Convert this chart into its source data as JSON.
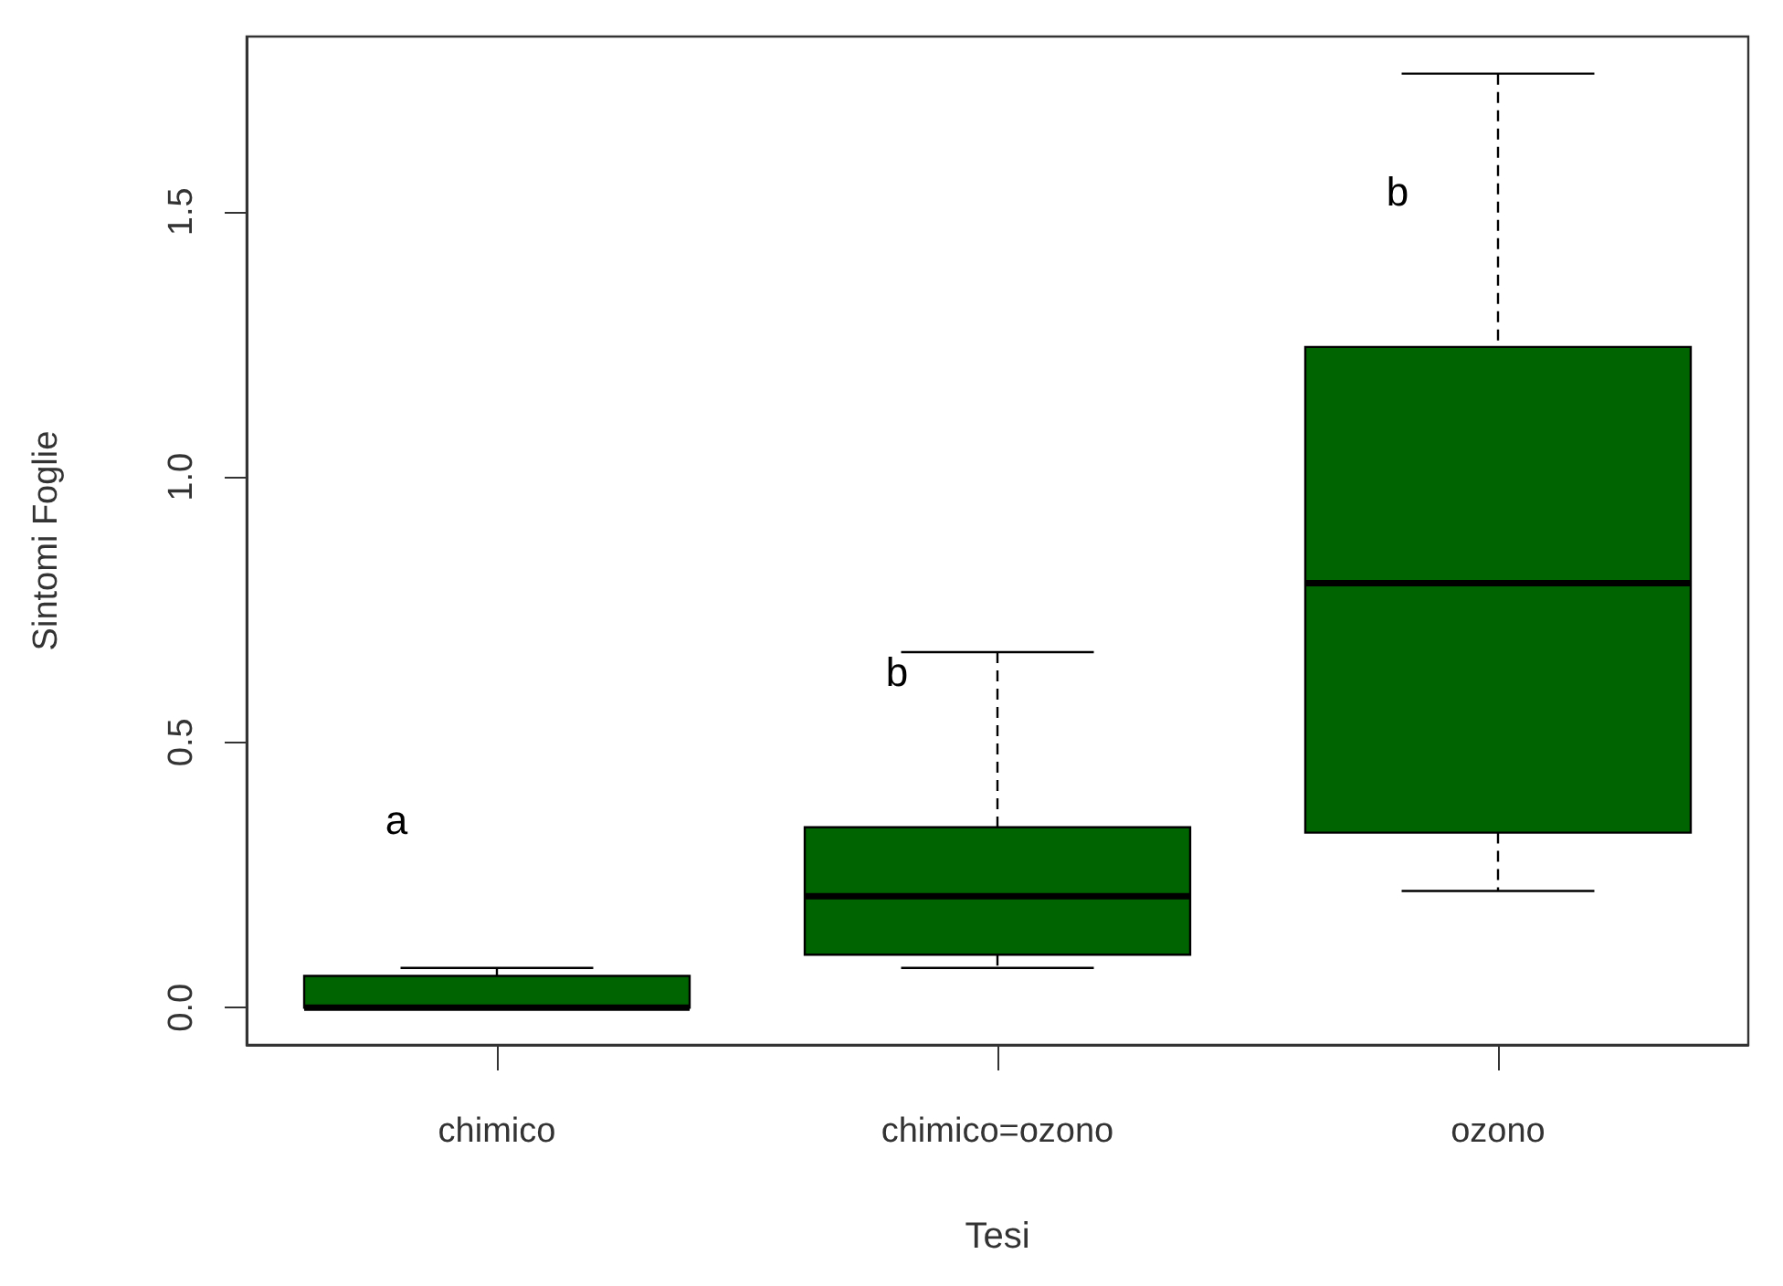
{
  "chart_data": {
    "type": "box",
    "xlabel": "Tesi",
    "ylabel": "Sintomi Foglie",
    "categories": [
      "chimico",
      "chimico=ozono",
      "ozono"
    ],
    "series": [
      {
        "color": "#006400",
        "boxes": [
          {
            "low": 0,
            "q1": 0,
            "median": 0,
            "q3": 0.06,
            "high": 0.075
          },
          {
            "low": 0.075,
            "q1": 0.1,
            "median": 0.21,
            "q3": 0.34,
            "high": 0.67
          },
          {
            "low": 0.22,
            "q1": 0.33,
            "median": 0.8,
            "q3": 1.245,
            "high": 1.76
          }
        ]
      }
    ],
    "ylim": [
      -0.07,
      1.83
    ],
    "yticks": [
      {
        "value": 0,
        "label": "0.0"
      },
      {
        "value": 0.5,
        "label": "0.5"
      },
      {
        "value": 1,
        "label": "1.0"
      },
      {
        "value": 1.5,
        "label": "1.5"
      }
    ],
    "grid": false,
    "annotations": [
      "a",
      "b",
      "b"
    ]
  }
}
